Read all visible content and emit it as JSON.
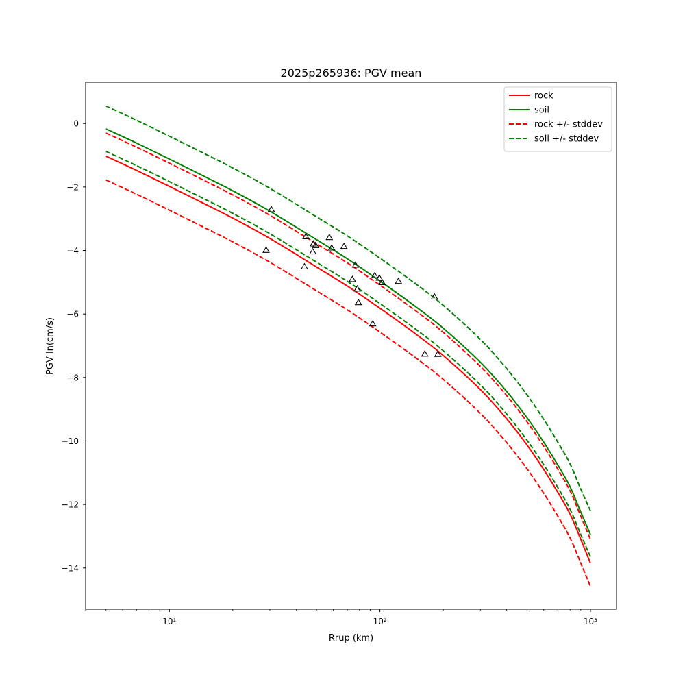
{
  "chart_data": {
    "type": "line",
    "title": "2025p265936: PGV mean",
    "xlabel": "Rrup (km)",
    "ylabel": "PGV ln(cm/s)",
    "xscale": "log",
    "xlim": [
      4,
      1330
    ],
    "ylim": [
      -15.3,
      1.3
    ],
    "x_ticks": [
      {
        "value": 10,
        "label": "10¹"
      },
      {
        "value": 100,
        "label": "10²"
      },
      {
        "value": 1000,
        "label": "10³"
      }
    ],
    "y_ticks": [
      {
        "value": 0,
        "label": "0"
      },
      {
        "value": -2,
        "label": "−2"
      },
      {
        "value": -4,
        "label": "−4"
      },
      {
        "value": -6,
        "label": "−6"
      },
      {
        "value": -8,
        "label": "−8"
      },
      {
        "value": -10,
        "label": "−10"
      },
      {
        "value": -12,
        "label": "−12"
      },
      {
        "value": -14,
        "label": "−14"
      }
    ],
    "grid": false,
    "legend_position": "top-right",
    "series": [
      {
        "name": "rock",
        "color": "#ff0000",
        "dash": "solid",
        "x": [
          5,
          7,
          10,
          15,
          20,
          30,
          50,
          70,
          100,
          150,
          200,
          300,
          400,
          500,
          600,
          700,
          800,
          900,
          1000
        ],
        "y": [
          -1.03,
          -1.48,
          -1.98,
          -2.56,
          -2.98,
          -3.62,
          -4.52,
          -5.12,
          -5.82,
          -6.66,
          -7.31,
          -8.38,
          -9.3,
          -10.13,
          -10.9,
          -11.62,
          -12.3,
          -13.1,
          -13.85
        ]
      },
      {
        "name": "soil",
        "color": "#008000",
        "dash": "solid",
        "x": [
          5,
          7,
          10,
          15,
          20,
          30,
          50,
          70,
          100,
          150,
          200,
          300,
          400,
          500,
          600,
          700,
          800,
          900,
          1000
        ],
        "y": [
          -0.17,
          -0.62,
          -1.12,
          -1.7,
          -2.12,
          -2.76,
          -3.66,
          -4.26,
          -4.96,
          -5.8,
          -6.45,
          -7.52,
          -8.44,
          -9.27,
          -10.04,
          -10.76,
          -11.44,
          -12.24,
          -12.95
        ]
      },
      {
        "name": "rock +/- stddev",
        "color": "#ff0000",
        "dash": "dashed",
        "x": [
          5,
          7,
          10,
          15,
          20,
          30,
          50,
          70,
          100,
          150,
          200,
          300,
          400,
          500,
          600,
          700,
          800,
          900,
          1000
        ],
        "y": [
          -0.3,
          -0.75,
          -1.25,
          -1.83,
          -2.25,
          -2.89,
          -3.79,
          -4.39,
          -5.09,
          -5.93,
          -6.58,
          -7.65,
          -8.57,
          -9.4,
          -10.17,
          -10.89,
          -11.57,
          -12.37,
          -13.1
        ]
      },
      {
        "name": "",
        "color": "#ff0000",
        "dash": "dashed",
        "x": [
          5,
          7,
          10,
          15,
          20,
          30,
          50,
          70,
          100,
          150,
          200,
          300,
          400,
          500,
          600,
          700,
          800,
          900,
          1000
        ],
        "y": [
          -1.78,
          -2.23,
          -2.73,
          -3.31,
          -3.73,
          -4.37,
          -5.27,
          -5.87,
          -6.57,
          -7.41,
          -8.06,
          -9.13,
          -10.05,
          -10.88,
          -11.65,
          -12.37,
          -13.05,
          -13.85,
          -14.58
        ]
      },
      {
        "name": "soil +/- stddev",
        "color": "#008000",
        "dash": "dashed",
        "x": [
          5,
          7,
          10,
          15,
          20,
          30,
          50,
          70,
          100,
          150,
          200,
          300,
          400,
          500,
          600,
          700,
          800,
          900,
          1000
        ],
        "y": [
          0.55,
          0.1,
          -0.4,
          -0.98,
          -1.4,
          -2.04,
          -2.94,
          -3.54,
          -4.24,
          -5.08,
          -5.73,
          -6.8,
          -7.72,
          -8.55,
          -9.32,
          -10.04,
          -10.72,
          -11.52,
          -12.2
        ]
      },
      {
        "name": "",
        "color": "#008000",
        "dash": "dashed",
        "x": [
          5,
          7,
          10,
          15,
          20,
          30,
          50,
          70,
          100,
          150,
          200,
          300,
          400,
          500,
          600,
          700,
          800,
          900,
          1000
        ],
        "y": [
          -0.88,
          -1.33,
          -1.83,
          -2.41,
          -2.83,
          -3.47,
          -4.37,
          -4.97,
          -5.67,
          -6.51,
          -7.16,
          -8.23,
          -9.15,
          -9.98,
          -10.75,
          -11.47,
          -12.15,
          -12.95,
          -13.65
        ]
      }
    ],
    "observations": {
      "marker": "triangle-open",
      "color": "#000000",
      "points": [
        {
          "x": 30.5,
          "y": -2.72
        },
        {
          "x": 28.8,
          "y": -4.0
        },
        {
          "x": 44.5,
          "y": -3.57
        },
        {
          "x": 43.8,
          "y": -4.52
        },
        {
          "x": 48.3,
          "y": -3.8
        },
        {
          "x": 49.5,
          "y": -3.85
        },
        {
          "x": 48.0,
          "y": -4.05
        },
        {
          "x": 57.5,
          "y": -3.6
        },
        {
          "x": 59.0,
          "y": -3.93
        },
        {
          "x": 67.5,
          "y": -3.88
        },
        {
          "x": 76.5,
          "y": -4.47
        },
        {
          "x": 74.0,
          "y": -4.92
        },
        {
          "x": 78.0,
          "y": -5.22
        },
        {
          "x": 79.0,
          "y": -5.65
        },
        {
          "x": 94.5,
          "y": -4.8
        },
        {
          "x": 99.5,
          "y": -4.88
        },
        {
          "x": 102.5,
          "y": -5.02
        },
        {
          "x": 122.5,
          "y": -4.98
        },
        {
          "x": 92.5,
          "y": -6.32
        },
        {
          "x": 181.5,
          "y": -5.47
        },
        {
          "x": 163.5,
          "y": -7.27
        },
        {
          "x": 188.5,
          "y": -7.28
        }
      ]
    }
  }
}
